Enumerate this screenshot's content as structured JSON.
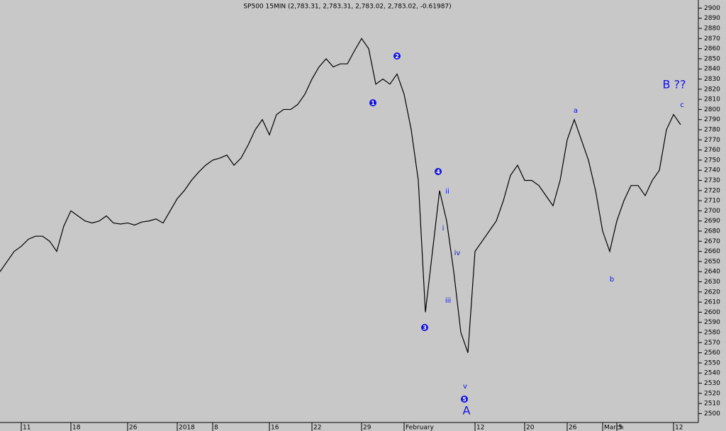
{
  "chart_data": {
    "type": "line",
    "title": "SP500 15MIN (2,783.31, 2,783.31, 2,783.02, 2,783.02, -0.61987)",
    "categories": [
      null,
      null,
      null,
      "11",
      null,
      null,
      null,
      null,
      null,
      null,
      "18",
      null,
      null,
      null,
      null,
      null,
      null,
      null,
      "26",
      null,
      null,
      null,
      null,
      null,
      null,
      "2018",
      null,
      null,
      null,
      null,
      "8",
      null,
      null,
      null,
      null,
      null,
      null,
      null,
      "16",
      null,
      null,
      null,
      null,
      null,
      "22",
      null,
      null,
      null,
      null,
      null,
      null,
      "29",
      null,
      null,
      null,
      null,
      null,
      "February",
      null,
      null,
      null,
      null,
      null,
      null,
      null,
      null,
      null,
      "12",
      null,
      null,
      null,
      null,
      null,
      null,
      "20",
      null,
      null,
      null,
      null,
      null,
      "26",
      null,
      null,
      null,
      null,
      "March",
      null,
      "5",
      null,
      null,
      null,
      null,
      null,
      null,
      null,
      "12",
      null
    ],
    "series": [
      {
        "name": "SP500",
        "color": "#000000",
        "values": [
          2640,
          2650,
          2660,
          2665,
          2672,
          2675,
          2675,
          2670,
          2660,
          2685,
          2700,
          2695,
          2690,
          2688,
          2690,
          2695,
          2688,
          2687,
          2688,
          2686,
          2689,
          2690,
          2692,
          2688,
          2700,
          2712,
          2720,
          2730,
          2738,
          2745,
          2750,
          2752,
          2755,
          2745,
          2752,
          2765,
          2780,
          2790,
          2775,
          2795,
          2800,
          2800,
          2805,
          2815,
          2830,
          2842,
          2850,
          2842,
          2845,
          2845,
          2858,
          2870,
          2860,
          2825,
          2830,
          2825,
          2835,
          2815,
          2780,
          2730,
          2600,
          2660,
          2720,
          2690,
          2640,
          2580,
          2560,
          2660,
          2670,
          2680,
          2690,
          2710,
          2735,
          2745,
          2730,
          2730,
          2725,
          2715,
          2705,
          2730,
          2770,
          2790,
          2770,
          2750,
          2720,
          2680,
          2660,
          2690,
          2710,
          2725,
          2725,
          2715,
          2730,
          2740,
          2780,
          2795,
          2785
        ]
      }
    ],
    "ylim": [
      2494,
      2908
    ],
    "yticks": [
      2500,
      2510,
      2520,
      2530,
      2540,
      2550,
      2560,
      2570,
      2580,
      2590,
      2600,
      2610,
      2620,
      2630,
      2640,
      2650,
      2660,
      2670,
      2680,
      2690,
      2700,
      2710,
      2720,
      2730,
      2740,
      2750,
      2760,
      2770,
      2780,
      2790,
      2800,
      2810,
      2820,
      2830,
      2840,
      2850,
      2860,
      2870,
      2880,
      2890,
      2900
    ],
    "annotations": [
      "1",
      "2",
      "3",
      "4",
      "5",
      "A",
      "B ??",
      "a",
      "b",
      "c",
      "i",
      "ii",
      "iii",
      "iv",
      "v"
    ]
  }
}
